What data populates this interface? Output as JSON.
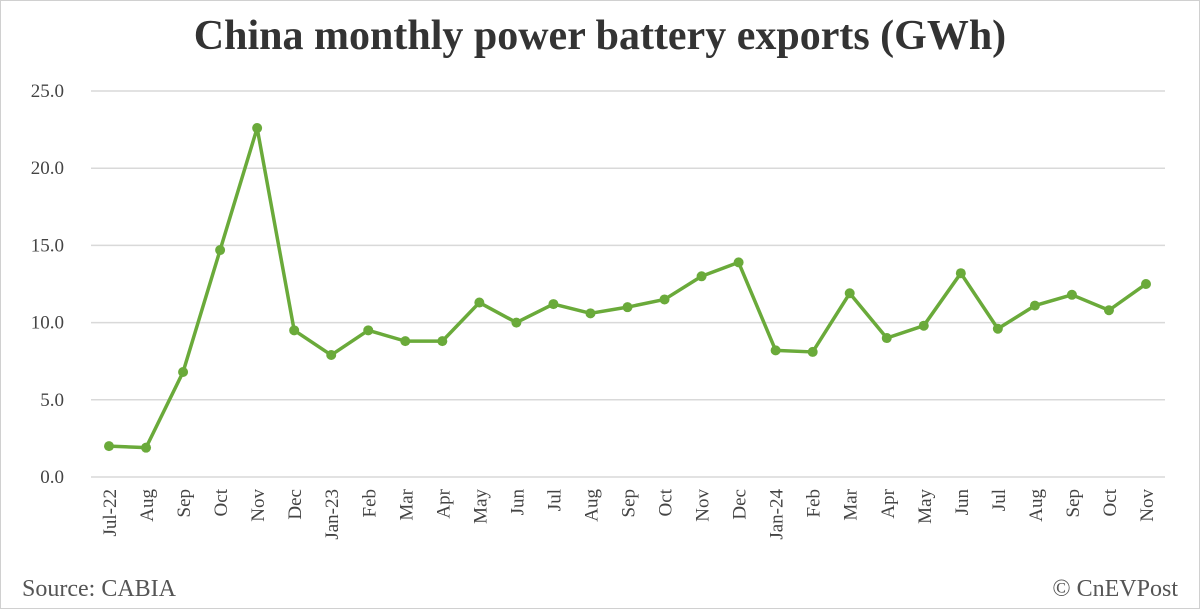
{
  "chart_data": {
    "type": "line",
    "title": "China monthly power battery exports (GWh)",
    "categories": [
      "Jul-22",
      "Aug",
      "Sep",
      "Oct",
      "Nov",
      "Dec",
      "Jan-23",
      "Feb",
      "Mar",
      "Apr",
      "May",
      "Jun",
      "Jul",
      "Aug",
      "Sep",
      "Oct",
      "Nov",
      "Dec",
      "Jan-24",
      "Feb",
      "Mar",
      "Apr",
      "May",
      "Jun",
      "Jul",
      "Aug",
      "Sep",
      "Oct",
      "Nov"
    ],
    "values": [
      2.0,
      1.9,
      6.8,
      14.7,
      22.6,
      9.5,
      7.9,
      9.5,
      8.8,
      8.8,
      11.3,
      10.0,
      11.2,
      10.6,
      11.0,
      11.5,
      13.0,
      13.9,
      8.2,
      8.1,
      11.9,
      9.0,
      9.8,
      13.2,
      9.6,
      11.1,
      11.8,
      10.8,
      12.5
    ],
    "ylim": [
      0,
      25
    ],
    "yticks": [
      "0.0",
      "5.0",
      "10.0",
      "15.0",
      "20.0",
      "25.0"
    ],
    "grid": true,
    "color": "#6aaa3a",
    "xlabel": "",
    "ylabel": ""
  },
  "footer": {
    "source": "Source: CABIA",
    "credit": "© CnEVPost"
  }
}
